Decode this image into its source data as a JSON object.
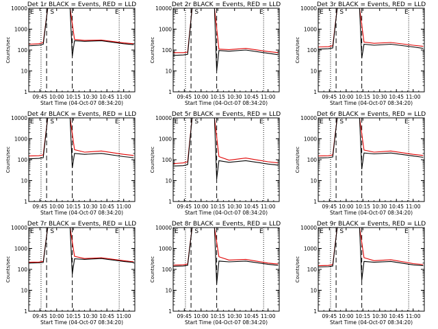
{
  "chart_data": [
    {
      "type": "line",
      "title": "Det 1r BLACK = Events, RED = LLD",
      "xlabel": "Start Time (04-Oct-07 08:34:20)",
      "ylabel": "Counts/sec",
      "yscale": "log",
      "ylim": [
        1,
        10000
      ],
      "xlim": [
        "09:35",
        "11:10"
      ],
      "xticks": [
        "09:45",
        "10:00",
        "10:15",
        "10:30",
        "10:45",
        "11:00"
      ],
      "yticks": [
        "1",
        "10",
        "100",
        "1000",
        "10000"
      ],
      "marker_labels": [
        {
          "text": "E",
          "x": "09:35"
        },
        {
          "text": "S",
          "x": "09:53"
        },
        {
          "text": "E",
          "x": "10:51"
        }
      ],
      "dotted_lines_at": [
        "09:46",
        "10:56"
      ],
      "dashed_lines_at": [
        "09:51",
        "10:14"
      ],
      "series": [
        {
          "color": "#e00000",
          "x": [
            "09:35",
            "09:44",
            "09:48",
            "09:52",
            "09:58",
            "10:12",
            "10:16",
            "10:25",
            "10:40",
            "11:00",
            "11:09"
          ],
          "values": [
            190,
            200,
            230,
            10000,
            10000,
            10000,
            320,
            290,
            300,
            220,
            200
          ]
        },
        {
          "color": "#000000",
          "x": [
            "09:35",
            "09:44",
            "09:48",
            "09:52",
            "09:58",
            "10:12",
            "10:14",
            "10:16",
            "10:25",
            "10:40",
            "11:00",
            "11:09"
          ],
          "values": [
            160,
            170,
            190,
            10000,
            10000,
            10000,
            50,
            280,
            260,
            280,
            200,
            180
          ]
        }
      ]
    },
    {
      "type": "line",
      "title": "Det 2r BLACK = Events, RED = LLD",
      "xlabel": "Start Time (04-Oct-07 08:34:20)",
      "ylabel": "Counts/sec",
      "yscale": "log",
      "ylim": [
        1,
        10000
      ],
      "xlim": [
        "09:35",
        "11:10"
      ],
      "xticks": [
        "09:45",
        "10:00",
        "10:15",
        "10:30",
        "10:45",
        "11:00"
      ],
      "yticks": [
        "1",
        "10",
        "100",
        "1000",
        "10000"
      ],
      "marker_labels": [
        {
          "text": "E",
          "x": "09:35"
        },
        {
          "text": "S",
          "x": "09:53"
        },
        {
          "text": "E",
          "x": "10:51"
        }
      ],
      "dotted_lines_at": [
        "09:46",
        "10:56"
      ],
      "dashed_lines_at": [
        "09:51",
        "10:14"
      ],
      "series": [
        {
          "color": "#e00000",
          "x": [
            "09:35",
            "09:44",
            "09:48",
            "09:52",
            "09:58",
            "10:12",
            "10:16",
            "10:25",
            "10:40",
            "11:00",
            "11:09"
          ],
          "values": [
            75,
            75,
            80,
            10000,
            10000,
            10000,
            110,
            105,
            120,
            85,
            75
          ]
        },
        {
          "color": "#000000",
          "x": [
            "09:35",
            "09:44",
            "09:48",
            "09:52",
            "09:58",
            "10:12",
            "10:14",
            "10:16",
            "10:25",
            "10:40",
            "11:00",
            "11:09"
          ],
          "values": [
            55,
            58,
            62,
            10000,
            10000,
            10000,
            10,
            95,
            88,
            100,
            70,
            60
          ]
        }
      ]
    },
    {
      "type": "line",
      "title": "Det 3r BLACK = Events, RED = LLD",
      "xlabel": "Start Time (04-Oct-07 08:34:20)",
      "ylabel": "Counts/sec",
      "yscale": "log",
      "ylim": [
        1,
        10000
      ],
      "xlim": [
        "09:35",
        "11:10"
      ],
      "xticks": [
        "09:45",
        "10:00",
        "10:15",
        "10:30",
        "10:45",
        "11:00"
      ],
      "yticks": [
        "1",
        "10",
        "100",
        "1000",
        "10000"
      ],
      "marker_labels": [
        {
          "text": "E",
          "x": "09:35"
        },
        {
          "text": "S",
          "x": "09:53"
        },
        {
          "text": "E",
          "x": "10:51"
        }
      ],
      "dotted_lines_at": [
        "09:46",
        "10:56"
      ],
      "dashed_lines_at": [
        "09:51",
        "10:14"
      ],
      "series": [
        {
          "color": "#e00000",
          "x": [
            "09:35",
            "09:44",
            "09:48",
            "09:52",
            "09:58",
            "10:12",
            "10:16",
            "10:25",
            "10:40",
            "11:00",
            "11:09"
          ],
          "values": [
            140,
            145,
            160,
            10000,
            10000,
            10000,
            240,
            210,
            230,
            170,
            150
          ]
        },
        {
          "color": "#000000",
          "x": [
            "09:35",
            "09:44",
            "09:48",
            "09:52",
            "09:58",
            "10:12",
            "10:14",
            "10:16",
            "10:25",
            "10:40",
            "11:00",
            "11:09"
          ],
          "values": [
            110,
            115,
            125,
            10000,
            10000,
            10000,
            40,
            190,
            170,
            190,
            140,
            120
          ]
        }
      ]
    },
    {
      "type": "line",
      "title": "Det 4r BLACK = Events, RED = LLD",
      "xlabel": "Start Time (04-Oct-07 08:34:20)",
      "ylabel": "Counts/sec",
      "yscale": "log",
      "ylim": [
        1,
        10000
      ],
      "xlim": [
        "09:35",
        "11:10"
      ],
      "xticks": [
        "09:45",
        "10:00",
        "10:15",
        "10:30",
        "10:45",
        "11:00"
      ],
      "yticks": [
        "1",
        "10",
        "100",
        "1000",
        "10000"
      ],
      "marker_labels": [
        {
          "text": "E",
          "x": "09:35"
        },
        {
          "text": "S",
          "x": "09:53"
        },
        {
          "text": "E",
          "x": "10:51"
        }
      ],
      "dotted_lines_at": [
        "09:46",
        "10:56"
      ],
      "dashed_lines_at": [
        "09:51",
        "10:14"
      ],
      "series": [
        {
          "color": "#e00000",
          "x": [
            "09:35",
            "09:44",
            "09:48",
            "09:52",
            "09:58",
            "10:12",
            "10:16",
            "10:25",
            "10:40",
            "11:00",
            "11:09"
          ],
          "values": [
            150,
            155,
            170,
            10000,
            10000,
            10000,
            300,
            230,
            260,
            180,
            160
          ]
        },
        {
          "color": "#000000",
          "x": [
            "09:35",
            "09:44",
            "09:48",
            "09:52",
            "09:58",
            "10:12",
            "10:14",
            "10:16",
            "10:25",
            "10:40",
            "11:00",
            "11:09"
          ],
          "values": [
            110,
            115,
            125,
            10000,
            10000,
            10000,
            40,
            200,
            180,
            200,
            140,
            125
          ]
        }
      ]
    },
    {
      "type": "line",
      "title": "Det 5r BLACK = Events, RED = LLD",
      "xlabel": "Start Time (04-Oct-07 08:34:20)",
      "ylabel": "Counts/sec",
      "yscale": "log",
      "ylim": [
        1,
        10000
      ],
      "xlim": [
        "09:35",
        "11:10"
      ],
      "xticks": [
        "09:45",
        "10:00",
        "10:15",
        "10:30",
        "10:45",
        "11:00"
      ],
      "yticks": [
        "1",
        "10",
        "100",
        "1000",
        "10000"
      ],
      "marker_labels": [
        {
          "text": "E",
          "x": "09:35"
        },
        {
          "text": "S",
          "x": "09:53"
        },
        {
          "text": "E",
          "x": "10:51"
        }
      ],
      "dotted_lines_at": [
        "09:46",
        "10:56"
      ],
      "dashed_lines_at": [
        "09:51",
        "10:14"
      ],
      "series": [
        {
          "color": "#e00000",
          "x": [
            "09:35",
            "09:44",
            "09:48",
            "09:52",
            "09:58",
            "10:12",
            "10:16",
            "10:25",
            "10:40",
            "11:00",
            "11:09"
          ],
          "values": [
            65,
            70,
            80,
            10000,
            10000,
            10000,
            140,
            95,
            120,
            80,
            70
          ]
        },
        {
          "color": "#000000",
          "x": [
            "09:35",
            "09:44",
            "09:48",
            "09:52",
            "09:58",
            "10:12",
            "10:14",
            "10:16",
            "10:25",
            "10:40",
            "11:00",
            "11:09"
          ],
          "values": [
            50,
            52,
            58,
            10000,
            10000,
            10000,
            12,
            90,
            75,
            90,
            62,
            55
          ]
        }
      ]
    },
    {
      "type": "line",
      "title": "Det 6r BLACK = Events, RED = LLD",
      "xlabel": "Start Time (04-Oct-07 08:34:20)",
      "ylabel": "Counts/sec",
      "yscale": "log",
      "ylim": [
        1,
        10000
      ],
      "xlim": [
        "09:35",
        "11:10"
      ],
      "xticks": [
        "09:45",
        "10:00",
        "10:15",
        "10:30",
        "10:45",
        "11:00"
      ],
      "yticks": [
        "1",
        "10",
        "100",
        "1000",
        "10000"
      ],
      "marker_labels": [
        {
          "text": "E",
          "x": "09:35"
        },
        {
          "text": "S",
          "x": "09:53"
        },
        {
          "text": "E",
          "x": "10:51"
        }
      ],
      "dotted_lines_at": [
        "09:46",
        "10:56"
      ],
      "dashed_lines_at": [
        "09:51",
        "10:14"
      ],
      "series": [
        {
          "color": "#e00000",
          "x": [
            "09:35",
            "09:44",
            "09:48",
            "09:52",
            "09:58",
            "10:12",
            "10:16",
            "10:25",
            "10:40",
            "11:00",
            "11:09"
          ],
          "values": [
            150,
            155,
            170,
            10000,
            10000,
            10000,
            290,
            230,
            260,
            180,
            160
          ]
        },
        {
          "color": "#000000",
          "x": [
            "09:35",
            "09:44",
            "09:48",
            "09:52",
            "09:58",
            "10:12",
            "10:14",
            "10:16",
            "10:25",
            "10:40",
            "11:00",
            "11:09"
          ],
          "values": [
            120,
            125,
            135,
            10000,
            10000,
            10000,
            35,
            210,
            190,
            210,
            150,
            130
          ]
        }
      ]
    },
    {
      "type": "line",
      "title": "Det 7r BLACK = Events, RED = LLD",
      "xlabel": "Start Time (04-Oct-07 08:34:20)",
      "ylabel": "Counts/sec",
      "yscale": "log",
      "ylim": [
        1,
        10000
      ],
      "xlim": [
        "09:35",
        "11:10"
      ],
      "xticks": [
        "09:45",
        "10:00",
        "10:15",
        "10:30",
        "10:45",
        "11:00"
      ],
      "yticks": [
        "1",
        "10",
        "100",
        "1000",
        "10000"
      ],
      "marker_labels": [
        {
          "text": "E",
          "x": "09:35"
        },
        {
          "text": "S",
          "x": "09:53"
        },
        {
          "text": "E",
          "x": "10:51"
        }
      ],
      "dotted_lines_at": [
        "09:46",
        "10:56"
      ],
      "dashed_lines_at": [
        "09:51",
        "10:14"
      ],
      "series": [
        {
          "color": "#e00000",
          "x": [
            "09:35",
            "09:44",
            "09:48",
            "09:52",
            "09:58",
            "10:12",
            "10:16",
            "10:25",
            "10:40",
            "11:00",
            "11:09"
          ],
          "values": [
            220,
            225,
            240,
            10000,
            10000,
            10000,
            420,
            330,
            360,
            260,
            230
          ]
        },
        {
          "color": "#000000",
          "x": [
            "09:35",
            "09:44",
            "09:48",
            "09:52",
            "09:58",
            "10:12",
            "10:14",
            "10:16",
            "10:25",
            "10:40",
            "11:00",
            "11:09"
          ],
          "values": [
            200,
            205,
            215,
            10000,
            10000,
            10000,
            60,
            320,
            300,
            330,
            240,
            215
          ]
        }
      ]
    },
    {
      "type": "line",
      "title": "Det 8r BLACK = Events, RED = LLD",
      "xlabel": "Start Time (04-Oct-07 08:34:20)",
      "ylabel": "Counts/sec",
      "yscale": "log",
      "ylim": [
        1,
        10000
      ],
      "xlim": [
        "09:35",
        "11:10"
      ],
      "xticks": [
        "09:45",
        "10:00",
        "10:15",
        "10:30",
        "10:45",
        "11:00"
      ],
      "yticks": [
        "1",
        "10",
        "100",
        "1000",
        "10000"
      ],
      "marker_labels": [
        {
          "text": "E",
          "x": "09:35"
        },
        {
          "text": "S",
          "x": "09:53"
        },
        {
          "text": "E",
          "x": "10:51"
        }
      ],
      "dotted_lines_at": [
        "09:46",
        "10:56"
      ],
      "dashed_lines_at": [
        "09:51",
        "10:14"
      ],
      "series": [
        {
          "color": "#e00000",
          "x": [
            "09:35",
            "09:44",
            "09:48",
            "09:52",
            "09:58",
            "10:12",
            "10:16",
            "10:25",
            "10:40",
            "11:00",
            "11:09"
          ],
          "values": [
            160,
            165,
            180,
            10000,
            10000,
            10000,
            400,
            280,
            300,
            200,
            180
          ]
        },
        {
          "color": "#000000",
          "x": [
            "09:35",
            "09:44",
            "09:48",
            "09:52",
            "09:58",
            "10:12",
            "10:14",
            "10:16",
            "10:25",
            "10:40",
            "11:00",
            "11:09"
          ],
          "values": [
            140,
            145,
            155,
            10000,
            10000,
            10000,
            20,
            250,
            230,
            250,
            175,
            155
          ]
        }
      ]
    },
    {
      "type": "line",
      "title": "Det 9r BLACK = Events, RED = LLD",
      "xlabel": "Start Time (04-Oct-07 08:34:20)",
      "ylabel": "Counts/sec",
      "yscale": "log",
      "ylim": [
        1,
        10000
      ],
      "xlim": [
        "09:35",
        "11:10"
      ],
      "xticks": [
        "09:45",
        "10:00",
        "10:15",
        "10:30",
        "10:45",
        "11:00"
      ],
      "yticks": [
        "1",
        "10",
        "100",
        "1000",
        "10000"
      ],
      "marker_labels": [
        {
          "text": "E",
          "x": "09:35"
        },
        {
          "text": "S",
          "x": "09:53"
        },
        {
          "text": "E",
          "x": "10:51"
        }
      ],
      "dotted_lines_at": [
        "09:46",
        "10:56"
      ],
      "dashed_lines_at": [
        "09:51",
        "10:14"
      ],
      "series": [
        {
          "color": "#e00000",
          "x": [
            "09:35",
            "09:44",
            "09:48",
            "09:52",
            "09:58",
            "10:12",
            "10:16",
            "10:25",
            "10:40",
            "11:00",
            "11:09"
          ],
          "values": [
            150,
            155,
            170,
            10000,
            10000,
            10000,
            360,
            260,
            290,
            190,
            170
          ]
        },
        {
          "color": "#000000",
          "x": [
            "09:35",
            "09:44",
            "09:48",
            "09:52",
            "09:58",
            "10:12",
            "10:14",
            "10:16",
            "10:25",
            "10:40",
            "11:00",
            "11:09"
          ],
          "values": [
            130,
            135,
            145,
            10000,
            10000,
            10000,
            30,
            240,
            220,
            240,
            165,
            150
          ]
        }
      ]
    }
  ]
}
